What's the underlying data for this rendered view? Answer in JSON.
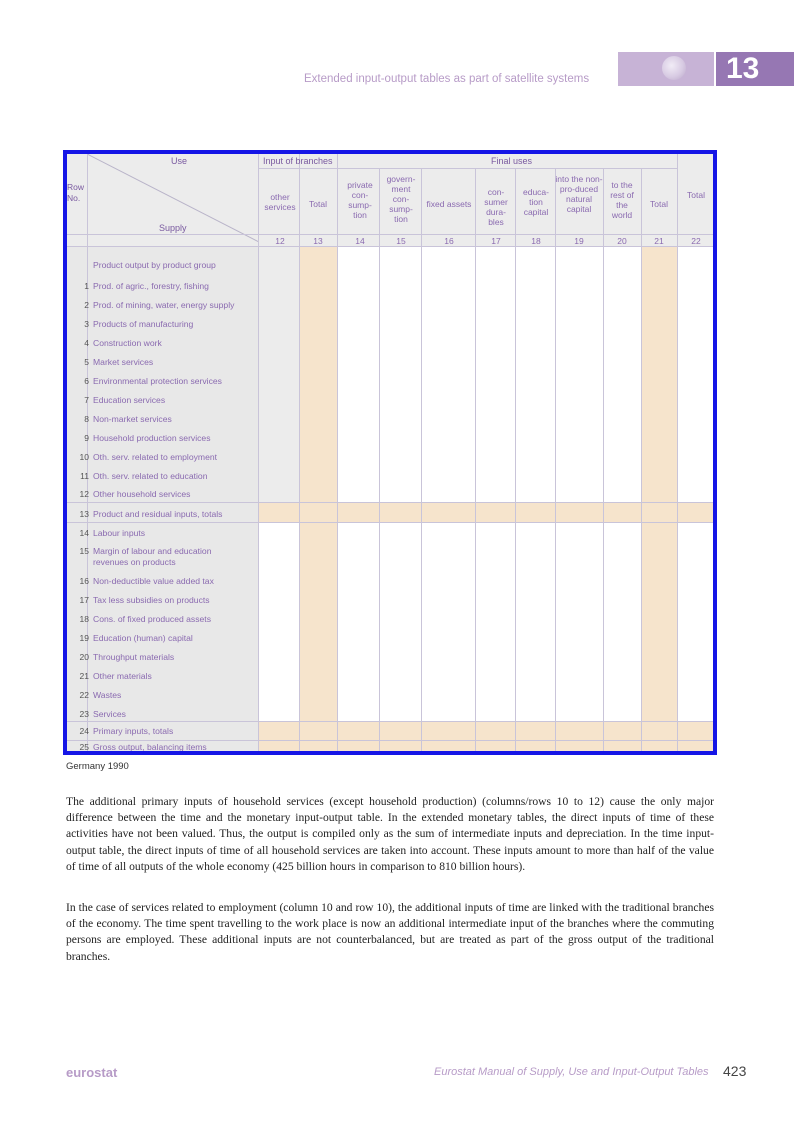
{
  "header": {
    "running_title": "Extended input-output tables as part of satellite systems",
    "chapter_number": "13"
  },
  "table": {
    "corner": {
      "use_label": "Use",
      "row_no_label": "Row\nNo.",
      "supply_label": "Supply"
    },
    "group_headers": {
      "input_of_branches": "Input of branches",
      "final_uses": "Final uses"
    },
    "columns": [
      {
        "label": "other services",
        "num": "12"
      },
      {
        "label": "Total",
        "num": "13"
      },
      {
        "label": "private con-sump-tion",
        "num": "14"
      },
      {
        "label": "govern-ment con-sump-tion",
        "num": "15"
      },
      {
        "label": "fixed assets",
        "num": "16"
      },
      {
        "label": "con-sumer dura-bles",
        "num": "17"
      },
      {
        "label": "educa-tion capital",
        "num": "18"
      },
      {
        "label": "into the non-pro-duced natural capital",
        "num": "19"
      },
      {
        "label": "to the rest of the world",
        "num": "20"
      },
      {
        "label": "Total",
        "num": "21"
      },
      {
        "label": "Total",
        "num": "22"
      }
    ],
    "section_title": "Product output by product group",
    "rows": [
      {
        "num": "1",
        "label": "Prod. of agric., forestry, fishing"
      },
      {
        "num": "2",
        "label": "Prod. of mining, water, energy supply"
      },
      {
        "num": "3",
        "label": "Products of manufacturing"
      },
      {
        "num": "4",
        "label": "Construction work"
      },
      {
        "num": "5",
        "label": "Market services"
      },
      {
        "num": "6",
        "label": "Environmental protection services"
      },
      {
        "num": "7",
        "label": "Education services"
      },
      {
        "num": "8",
        "label": "Non-market services"
      },
      {
        "num": "9",
        "label": "Household production services"
      },
      {
        "num": "10",
        "label": "Oth. serv. related to employment"
      },
      {
        "num": "11",
        "label": "Oth. serv. related to education"
      },
      {
        "num": "12",
        "label": "Other household services"
      },
      {
        "num": "13",
        "label": "Product and residual inputs, totals"
      },
      {
        "num": "14",
        "label": "Labour inputs"
      },
      {
        "num": "15",
        "label": "Margin of labour and education revenues on products"
      },
      {
        "num": "16",
        "label": "Non-deductible value added tax"
      },
      {
        "num": "17",
        "label": "Tax less subsidies on products"
      },
      {
        "num": "18",
        "label": "Cons. of fixed produced assets"
      },
      {
        "num": "19",
        "label": "Education (human) capital"
      },
      {
        "num": "20",
        "label": "Throughput materials"
      },
      {
        "num": "21",
        "label": "Other materials"
      },
      {
        "num": "22",
        "label": "Wastes"
      },
      {
        "num": "23",
        "label": "Services"
      },
      {
        "num": "24",
        "label": "Primary inputs, totals"
      },
      {
        "num": "25",
        "label": "Gross output, balancing items"
      }
    ]
  },
  "caption": "Germany 1990",
  "paragraphs": [
    "The additional primary inputs of household services (except household production) (columns/rows 10 to 12) cause the only major difference between the time and the monetary input-output table. In the extended monetary tables, the direct inputs of time of these activities have not been valued. Thus, the output is compiled only as the sum of intermediate inputs and depreciation. In the time input-output table, the direct inputs of time of all household services are taken into account. These inputs amount to more than half of the value of time of all outputs of the whole economy (425 billion hours in comparison to 810 billion hours).",
    "In the case of services related to employment (column 10 and row 10), the additional inputs of time are linked with the traditional branches of the economy. The time spent travelling to the work place is now an additional intermediate input of the branches where the commuting persons are employed. These additional inputs are not counterbalanced, but are treated as part of the gross output of the traditional branches."
  ],
  "footer": {
    "brand": "eurostat",
    "manual_title": "Eurostat Manual of Supply, Use and Input-Output Tables",
    "page_number": "423"
  },
  "colors": {
    "accent_purple": "#9677b3",
    "header_band": "#c7b3d6",
    "table_border": "#1515e6",
    "shade_tan": "#f6e4cc",
    "shade_grey": "#e6e6e6"
  }
}
